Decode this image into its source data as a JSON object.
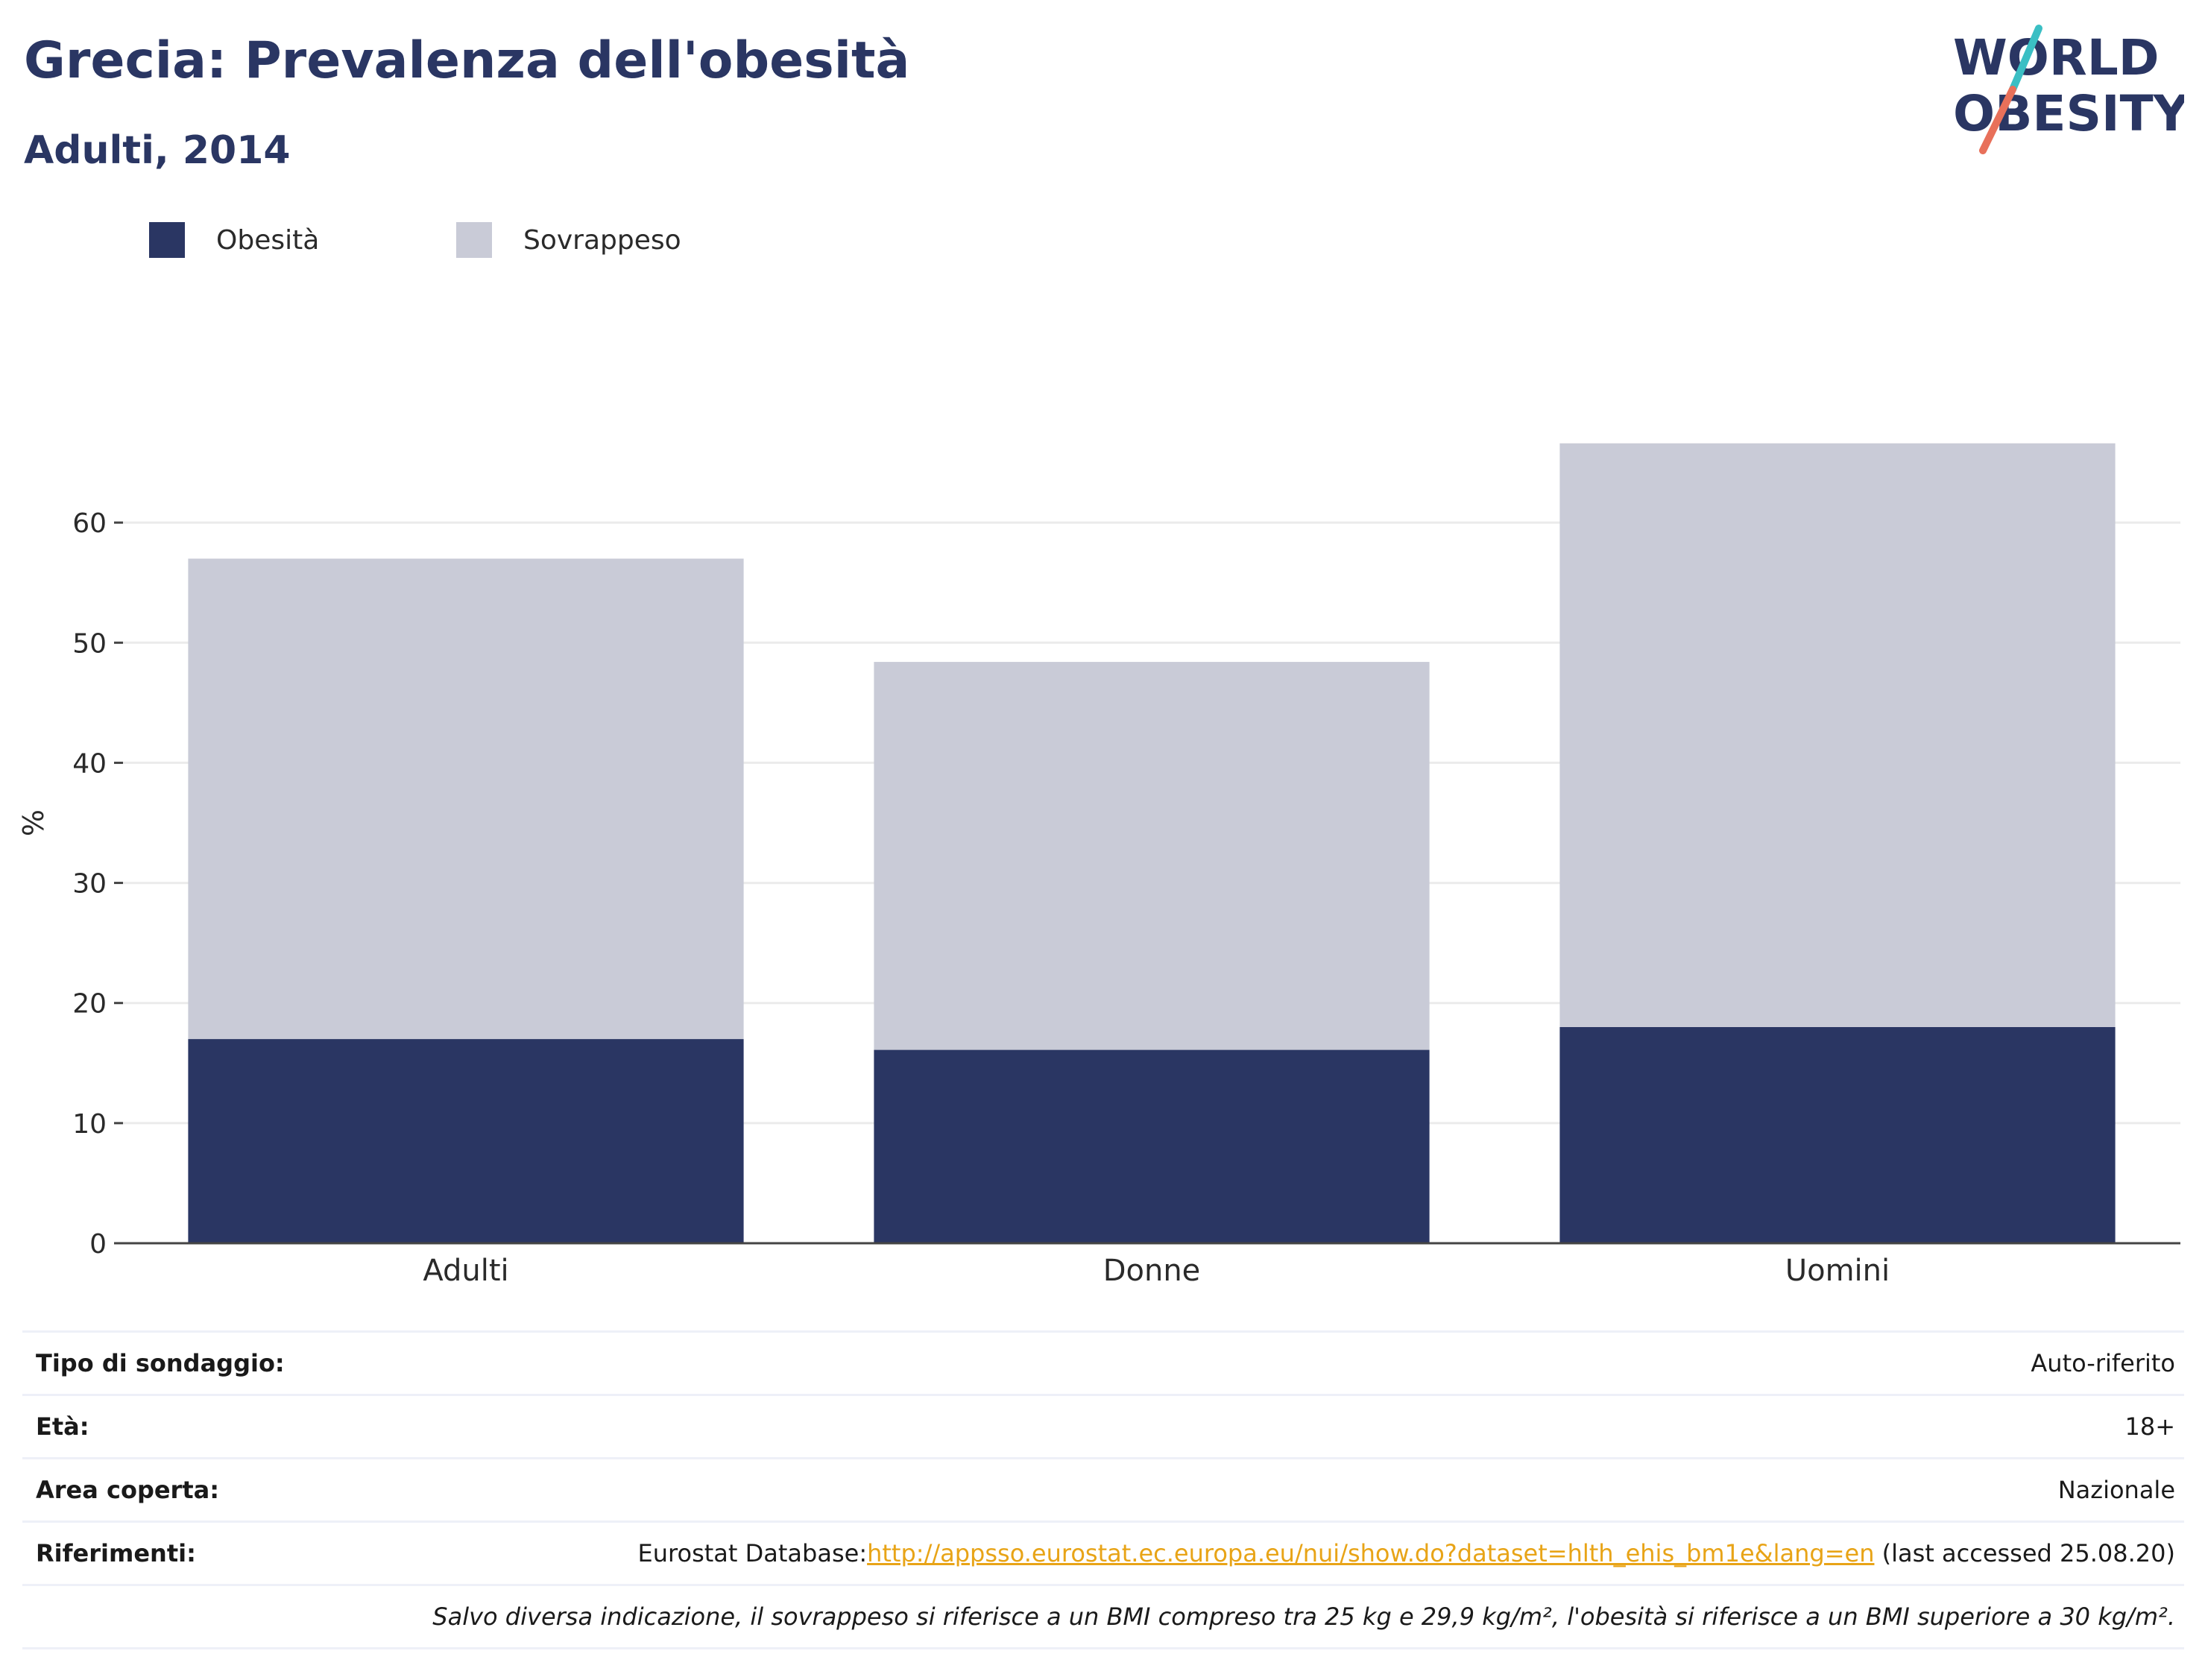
{
  "header": {
    "title": "Grecia: Prevalenza dell'obesità",
    "subtitle": "Adulti, 2014"
  },
  "logo": {
    "line1": "WORLD",
    "line2": "OBESITY"
  },
  "colors": {
    "obesity": "#2a3663",
    "overweight": "#c9cbd7",
    "text": "#2a3663",
    "link": "#e8a417",
    "logo_slash_top": "#3bbfc4",
    "logo_slash_bottom": "#e8705a"
  },
  "legend": {
    "items": [
      {
        "label": "Obesità",
        "color": "#2a3663"
      },
      {
        "label": "Sovrappeso",
        "color": "#c9cbd7"
      }
    ]
  },
  "chart_data": {
    "type": "bar",
    "stacked": true,
    "categories": [
      "Adulti",
      "Donne",
      "Uomini"
    ],
    "series": [
      {
        "name": "Obesità",
        "values": [
          17,
          16.1,
          18
        ],
        "color": "#2a3663"
      },
      {
        "name": "Sovrappeso",
        "values": [
          40,
          32.3,
          48.6
        ],
        "color": "#c9cbd7"
      }
    ],
    "ylabel": "%",
    "ylim": [
      0,
      70
    ],
    "yticks": [
      0,
      10,
      20,
      30,
      40,
      50,
      60
    ],
    "grid": true,
    "legend_position": "top-left"
  },
  "info_table": {
    "survey_type": {
      "label": "Tipo di sondaggio:",
      "value": "Auto-riferito"
    },
    "age": {
      "label": "Età:",
      "value": "18+"
    },
    "area": {
      "label": "Area coperta:",
      "value": "Nazionale"
    },
    "references": {
      "label": "Riferimenti:",
      "prefix": "Eurostat Database:",
      "link": "http://appsso.eurostat.ec.europa.eu/nui/show.do?dataset=hlth_ehis_bm1e&lang=en",
      "suffix": " (last accessed 25.08.20)"
    },
    "note": "Salvo diversa indicazione, il sovrappeso si riferisce a un BMI compreso tra 25 kg e 29,9 kg/m², l'obesità si riferisce a un BMI superiore a 30 kg/m²."
  }
}
